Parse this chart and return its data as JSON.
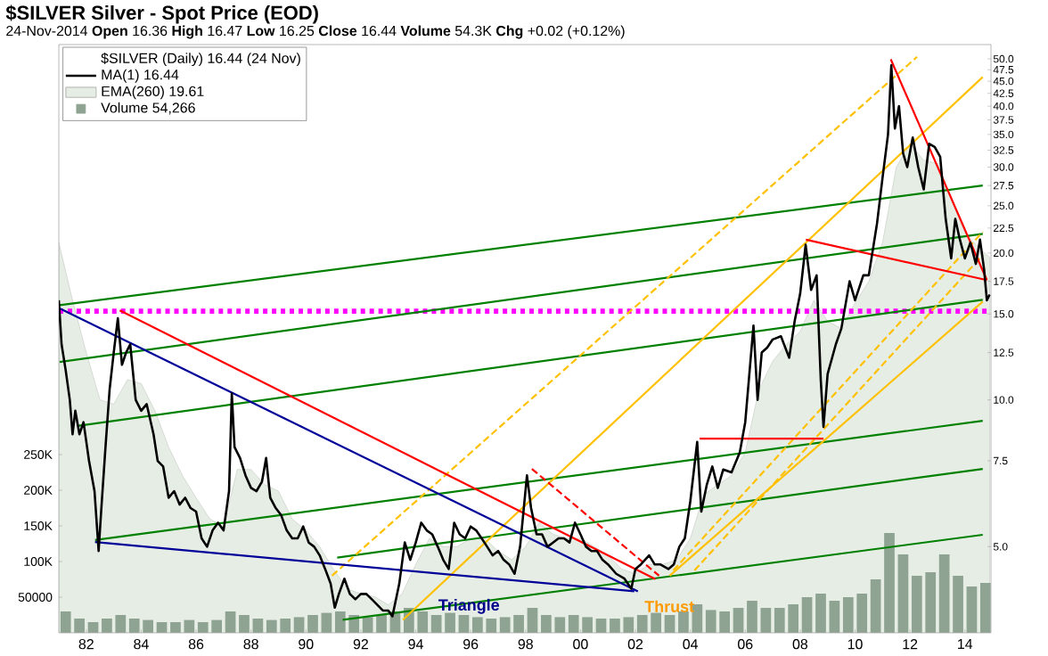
{
  "chart_data": {
    "type": "line",
    "title": "$SILVER Silver - Spot Price (EOD)",
    "subtitle": "24-Nov-2014   **Open** 16.36 **High** 16.47 **Low** 16.25 **Close** 16.44 **Volume** 54.3K **Chg** +0.02 (+0.12%)",
    "legend_title": "$SILVER (Daily) 16.44 (24 Nov)",
    "legend": "top left",
    "log": "y",
    "xlim": [
      1981.0,
      2014.95
    ],
    "xticks": [
      {
        "value": 1982,
        "label": "82"
      },
      {
        "value": 1984,
        "label": "84"
      },
      {
        "value": 1986,
        "label": "86"
      },
      {
        "value": 1988,
        "label": "88"
      },
      {
        "value": 1990,
        "label": "90"
      },
      {
        "value": 1992,
        "label": "92"
      },
      {
        "value": 1994,
        "label": "94"
      },
      {
        "value": 1996,
        "label": "96"
      },
      {
        "value": 1998,
        "label": "98"
      },
      {
        "value": 2000,
        "label": "00"
      },
      {
        "value": 2002,
        "label": "02"
      },
      {
        "value": 2004,
        "label": "04"
      },
      {
        "value": 2006,
        "label": "06"
      },
      {
        "value": 2008,
        "label": "08"
      },
      {
        "value": 2010,
        "label": "10"
      },
      {
        "value": 2012,
        "label": "12"
      },
      {
        "value": 2014,
        "label": "14"
      }
    ],
    "ylim": [
      3.33,
      53.5
    ],
    "yticks": [
      {
        "value": 5,
        "label": "5.0"
      },
      {
        "value": 7.5,
        "label": "7.5"
      },
      {
        "value": 10,
        "label": "10.0"
      },
      {
        "value": 12.5,
        "label": "12.5"
      },
      {
        "value": 15,
        "label": "15.0"
      },
      {
        "value": 17.5,
        "label": "17.5"
      },
      {
        "value": 20,
        "label": "20.0"
      },
      {
        "value": 22.5,
        "label": "22.5"
      },
      {
        "value": 25,
        "label": "25.0"
      },
      {
        "value": 27.5,
        "label": "27.5"
      },
      {
        "value": 30,
        "label": "30.0"
      },
      {
        "value": 32.5,
        "label": "32.5"
      },
      {
        "value": 35,
        "label": "35.0"
      },
      {
        "value": 37.5,
        "label": "37.5"
      },
      {
        "value": 40,
        "label": "40.0"
      },
      {
        "value": 42.5,
        "label": "42.5"
      },
      {
        "value": 45,
        "label": "45.0"
      },
      {
        "value": 47.5,
        "label": "47.5"
      },
      {
        "value": 50,
        "label": "50.0"
      }
    ],
    "y2lim": [
      0,
      825000
    ],
    "y2ticks": [
      {
        "value": 50000,
        "label": "50000"
      },
      {
        "value": 100000,
        "label": "100K"
      },
      {
        "value": 150000,
        "label": "150K"
      },
      {
        "value": 200000,
        "label": "200K"
      },
      {
        "value": 250000,
        "label": "250K"
      }
    ],
    "ref_lines": [
      {
        "axis": "y",
        "value": 15.2,
        "color": "#ff00ff",
        "line_style": "dotted"
      }
    ],
    "annotations": [
      "Triangle",
      "Thrust"
    ],
    "series": [
      {
        "name": "MA(1) 16.44",
        "color": "#000000",
        "x": [
          1981.0,
          1981.1,
          1981.25,
          1981.4,
          1981.5,
          1981.6,
          1981.75,
          1981.9,
          1982.1,
          1982.3,
          1982.45,
          1982.55,
          1982.7,
          1982.85,
          1983.0,
          1983.15,
          1983.3,
          1983.45,
          1983.6,
          1983.8,
          1984.0,
          1984.2,
          1984.45,
          1984.6,
          1984.8,
          1985.0,
          1985.2,
          1985.4,
          1985.6,
          1985.8,
          1986.0,
          1986.2,
          1986.4,
          1986.6,
          1986.8,
          1987.0,
          1987.2,
          1987.3,
          1987.4,
          1987.6,
          1987.8,
          1988.0,
          1988.2,
          1988.4,
          1988.55,
          1988.7,
          1988.9,
          1989.1,
          1989.3,
          1989.5,
          1989.7,
          1989.9,
          1990.1,
          1990.3,
          1990.5,
          1990.7,
          1990.9,
          1991.05,
          1991.2,
          1991.4,
          1991.6,
          1991.8,
          1992.0,
          1992.2,
          1992.4,
          1992.6,
          1992.8,
          1993.0,
          1993.15,
          1993.4,
          1993.6,
          1993.8,
          1994.0,
          1994.2,
          1994.4,
          1994.6,
          1994.8,
          1995.0,
          1995.2,
          1995.4,
          1995.6,
          1995.8,
          1996.0,
          1996.2,
          1996.4,
          1996.6,
          1996.8,
          1997.0,
          1997.2,
          1997.4,
          1997.6,
          1997.8,
          1998.05,
          1998.2,
          1998.4,
          1998.6,
          1998.8,
          1999.0,
          1999.2,
          1999.4,
          1999.6,
          1999.8,
          2000.0,
          2000.2,
          2000.4,
          2000.6,
          2000.8,
          2001.0,
          2001.3,
          2001.6,
          2001.85,
          2002.0,
          2002.2,
          2002.5,
          2002.7,
          2002.9,
          2003.2,
          2003.4,
          2003.6,
          2003.8,
          2004.0,
          2004.25,
          2004.4,
          2004.6,
          2004.8,
          2005.0,
          2005.2,
          2005.5,
          2005.8,
          2006.0,
          2006.3,
          2006.45,
          2006.6,
          2006.8,
          2007.0,
          2007.3,
          2007.6,
          2007.8,
          2008.0,
          2008.2,
          2008.4,
          2008.6,
          2008.75,
          2008.85,
          2009.0,
          2009.3,
          2009.5,
          2009.8,
          2010.0,
          2010.3,
          2010.5,
          2010.8,
          2011.0,
          2011.2,
          2011.32,
          2011.45,
          2011.6,
          2011.75,
          2011.9,
          2012.1,
          2012.3,
          2012.5,
          2012.7,
          2012.9,
          2013.1,
          2013.3,
          2013.5,
          2013.65,
          2013.8,
          2014.0,
          2014.2,
          2014.4,
          2014.55,
          2014.7,
          2014.8,
          2014.9
        ],
        "values": [
          16.0,
          13.0,
          11.5,
          10.0,
          8.5,
          9.5,
          8.5,
          9.0,
          7.5,
          6.5,
          4.9,
          6.0,
          8.0,
          10.5,
          12.5,
          14.7,
          11.8,
          12.5,
          13.0,
          10.0,
          9.5,
          9.8,
          8.5,
          7.5,
          7.3,
          6.3,
          6.5,
          6.1,
          6.3,
          6.0,
          5.9,
          5.2,
          5.0,
          5.4,
          5.6,
          5.4,
          6.5,
          10.3,
          8.0,
          7.6,
          7.0,
          6.6,
          6.5,
          6.8,
          7.6,
          6.3,
          6.0,
          5.8,
          5.4,
          5.2,
          5.2,
          5.5,
          5.1,
          5.0,
          4.8,
          4.5,
          4.2,
          3.75,
          4.0,
          4.3,
          4.0,
          3.9,
          4.0,
          4.0,
          3.9,
          3.8,
          3.7,
          3.7,
          3.6,
          4.2,
          5.1,
          4.7,
          5.1,
          5.6,
          5.4,
          5.3,
          5.0,
          4.7,
          4.5,
          5.6,
          5.3,
          5.2,
          5.5,
          5.4,
          5.2,
          5.0,
          4.8,
          4.9,
          4.7,
          4.6,
          4.4,
          5.0,
          7.0,
          6.0,
          5.3,
          5.3,
          5.0,
          5.1,
          5.2,
          5.2,
          5.1,
          5.6,
          5.3,
          5.0,
          4.9,
          4.9,
          4.7,
          4.6,
          4.4,
          4.3,
          4.1,
          4.5,
          4.6,
          4.8,
          4.6,
          4.6,
          4.5,
          4.6,
          5.0,
          5.2,
          6.2,
          8.2,
          5.9,
          6.7,
          7.3,
          6.6,
          7.2,
          7.1,
          7.8,
          9.0,
          14.2,
          10.0,
          12.5,
          12.8,
          13.3,
          13.5,
          12.2,
          14.5,
          16.5,
          20.8,
          16.8,
          18.0,
          11.0,
          8.8,
          11.3,
          13.0,
          14.0,
          17.5,
          16.0,
          18.0,
          18.0,
          23.0,
          28.5,
          35.0,
          48.5,
          36.0,
          40.0,
          32.0,
          30.0,
          34.5,
          30.0,
          27.0,
          33.5,
          33.0,
          31.5,
          23.5,
          19.5,
          23.5,
          21.5,
          19.5,
          21.0,
          19.0,
          21.3,
          18.5,
          16.0,
          16.44
        ]
      },
      {
        "type": "area",
        "name": "EMA(260) 19.61",
        "color": "#e6ede4",
        "x": [
          1981.0,
          1981.5,
          1982.0,
          1982.5,
          1983.0,
          1983.5,
          1984.0,
          1984.5,
          1985.0,
          1985.5,
          1986.0,
          1986.5,
          1987.0,
          1987.5,
          1988.0,
          1988.5,
          1989.0,
          1989.5,
          1990.0,
          1990.5,
          1991.0,
          1991.5,
          1992.0,
          1992.5,
          1993.0,
          1993.5,
          1994.0,
          1994.5,
          1995.0,
          1995.5,
          1996.0,
          1996.5,
          1997.0,
          1997.5,
          1998.0,
          1998.5,
          1999.0,
          1999.5,
          2000.0,
          2000.5,
          2001.0,
          2001.5,
          2002.0,
          2002.5,
          2003.0,
          2003.5,
          2004.0,
          2004.5,
          2005.0,
          2005.5,
          2006.0,
          2006.5,
          2007.0,
          2007.5,
          2008.0,
          2008.5,
          2009.0,
          2009.5,
          2010.0,
          2010.5,
          2011.0,
          2011.5,
          2012.0,
          2012.5,
          2013.0,
          2013.5,
          2014.0,
          2014.5,
          2014.9
        ],
        "values": [
          21.0,
          16.0,
          12.5,
          10.0,
          9.8,
          11.0,
          10.8,
          9.5,
          8.0,
          7.0,
          6.3,
          5.7,
          5.5,
          7.2,
          7.2,
          6.7,
          6.5,
          5.7,
          5.4,
          5.0,
          4.5,
          4.1,
          4.0,
          3.95,
          3.8,
          4.0,
          4.6,
          5.2,
          5.0,
          5.0,
          5.2,
          5.2,
          4.9,
          4.7,
          5.0,
          5.6,
          5.3,
          5.2,
          5.2,
          5.0,
          4.8,
          4.5,
          4.4,
          4.6,
          4.6,
          4.7,
          5.2,
          6.4,
          6.7,
          7.0,
          7.8,
          10.5,
          12.0,
          13.0,
          13.8,
          16.0,
          14.5,
          14.0,
          15.8,
          17.5,
          21.0,
          30.0,
          33.5,
          31.0,
          30.5,
          26.0,
          22.0,
          20.5,
          19.61
        ]
      },
      {
        "type": "bar",
        "name": "Volume 54,266",
        "color": "#8ea391",
        "axis": "y2",
        "x": [
          1981.25,
          1981.75,
          1982.25,
          1982.75,
          1983.25,
          1983.75,
          1984.25,
          1984.75,
          1985.25,
          1985.75,
          1986.25,
          1986.75,
          1987.25,
          1987.75,
          1988.25,
          1988.75,
          1989.25,
          1989.75,
          1990.25,
          1990.75,
          1991.25,
          1991.75,
          1992.25,
          1992.75,
          1993.25,
          1993.75,
          1994.25,
          1994.75,
          1995.25,
          1995.75,
          1996.25,
          1996.75,
          1997.25,
          1997.75,
          1998.25,
          1998.75,
          1999.25,
          1999.75,
          2000.25,
          2000.75,
          2001.25,
          2001.75,
          2002.25,
          2002.75,
          2003.25,
          2003.75,
          2004.25,
          2004.75,
          2005.25,
          2005.75,
          2006.25,
          2006.75,
          2007.25,
          2007.75,
          2008.25,
          2008.75,
          2009.25,
          2009.75,
          2010.25,
          2010.75,
          2011.25,
          2011.75,
          2012.25,
          2012.75,
          2013.25,
          2013.75,
          2014.25,
          2014.75
        ],
        "values": [
          30000,
          20000,
          15000,
          20000,
          25000,
          20000,
          18000,
          15000,
          15000,
          18000,
          15000,
          18000,
          30000,
          25000,
          20000,
          18000,
          20000,
          22000,
          25000,
          28000,
          30000,
          25000,
          22000,
          25000,
          30000,
          35000,
          30000,
          25000,
          28000,
          25000,
          22000,
          20000,
          22000,
          25000,
          35000,
          25000,
          22000,
          25000,
          22000,
          20000,
          20000,
          22000,
          25000,
          28000,
          25000,
          30000,
          40000,
          32000,
          30000,
          35000,
          45000,
          35000,
          35000,
          40000,
          50000,
          55000,
          45000,
          50000,
          55000,
          75000,
          140000,
          110000,
          80000,
          85000,
          110000,
          80000,
          65000,
          70000
        ]
      },
      {
        "type": "line",
        "color": "#008000",
        "line_style": "solid",
        "x": [
          1981.03,
          2014.65
        ],
        "values": [
          15.64,
          27.5
        ]
      },
      {
        "type": "line",
        "color": "#008000",
        "line_style": "solid",
        "x": [
          1981.03,
          2014.65
        ],
        "values": [
          11.96,
          21.9
        ]
      },
      {
        "type": "line",
        "color": "#008000",
        "line_style": "solid",
        "x": [
          1981.68,
          2014.65
        ],
        "values": [
          8.84,
          16.04
        ]
      },
      {
        "type": "line",
        "color": "#008000",
        "line_style": "solid",
        "x": [
          1982.32,
          2014.65
        ],
        "values": [
          5.16,
          9.06
        ]
      },
      {
        "type": "line",
        "color": "#008000",
        "line_style": "solid",
        "x": [
          1991.14,
          2014.65
        ],
        "values": [
          4.75,
          7.22
        ]
      },
      {
        "type": "line",
        "color": "#008000",
        "line_style": "solid",
        "x": [
          1991.34,
          2014.65
        ],
        "values": [
          3.54,
          5.29
        ]
      },
      {
        "type": "line",
        "color": "#ffc000",
        "line_style": "solid",
        "x": [
          2003.25,
          2014.65
        ],
        "values": [
          4.36,
          15.9
        ]
      },
      {
        "type": "line",
        "color": "#ffc000",
        "line_style": "solid",
        "x": [
          1993.53,
          2014.65
        ],
        "values": [
          3.54,
          45.9
        ]
      },
      {
        "type": "line",
        "color": "#ffc000",
        "line_style": "dashed",
        "x": [
          1990.95,
          2012.26
        ],
        "values": [
          4.36,
          50.5
        ]
      },
      {
        "type": "line",
        "color": "#ffc000",
        "line_style": "dashed",
        "x": [
          2003.38,
          2014.65
        ],
        "values": [
          4.47,
          22.1
        ]
      },
      {
        "type": "line",
        "color": "#ffc000",
        "line_style": "dashed",
        "x": [
          2004.15,
          2014.65
        ],
        "values": [
          4.47,
          19.8
        ]
      },
      {
        "type": "line",
        "color": "#ff0000",
        "line_style": "solid",
        "x": [
          1983.22,
          2002.73
        ],
        "values": [
          15.25,
          4.29
        ]
      },
      {
        "type": "line",
        "color": "#ff0000",
        "line_style": "dashed",
        "x": [
          1998.23,
          2002.86
        ],
        "values": [
          7.22,
          4.36
        ]
      },
      {
        "type": "line",
        "color": "#ff0000",
        "line_style": "solid",
        "x": [
          2004.34,
          2008.85
        ],
        "values": [
          8.33,
          8.33
        ]
      },
      {
        "type": "line",
        "color": "#ff0000",
        "line_style": "solid",
        "x": [
          2008.21,
          2014.8
        ],
        "values": [
          21.3,
          17.6
        ]
      },
      {
        "type": "line",
        "color": "#ff0000",
        "line_style": "solid",
        "x": [
          2011.3,
          2014.8
        ],
        "values": [
          49.9,
          17.6
        ]
      },
      {
        "type": "line",
        "color": "#000099",
        "line_style": "solid",
        "x": [
          1981.03,
          2002.09
        ],
        "values": [
          15.4,
          4.05
        ]
      },
      {
        "type": "line",
        "color": "#000099",
        "line_style": "solid",
        "x": [
          1982.32,
          2001.96
        ],
        "values": [
          5.11,
          4.05
        ]
      }
    ]
  }
}
